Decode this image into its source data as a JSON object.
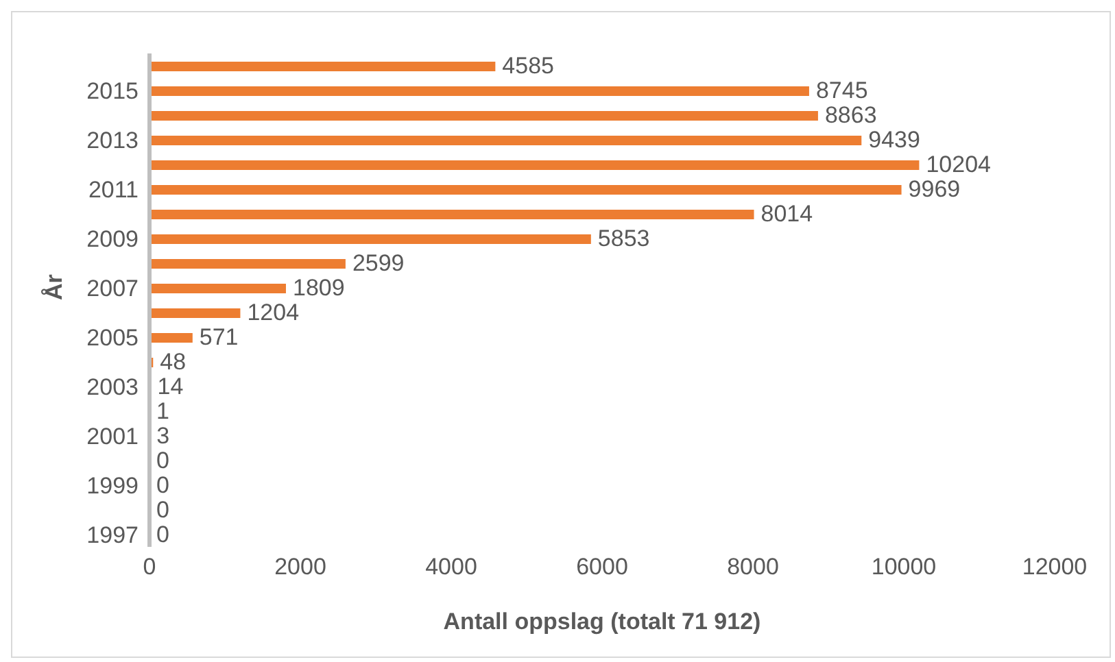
{
  "chart_data": {
    "type": "bar",
    "orientation": "horizontal",
    "xlabel": "Antall oppslag (totalt 71 912)",
    "ylabel": "År",
    "categories": [
      null,
      "2015",
      null,
      "2013",
      null,
      "2011",
      null,
      "2009",
      null,
      "2007",
      null,
      "2005",
      null,
      "2003",
      null,
      "2001",
      null,
      "1999",
      null,
      "1997"
    ],
    "values": [
      4585,
      8745,
      8863,
      9439,
      10204,
      9969,
      8014,
      5853,
      2599,
      1809,
      1204,
      571,
      48,
      14,
      1,
      3,
      0,
      0,
      0,
      0
    ],
    "color": "#ed7d31",
    "xlim": [
      0,
      12000
    ],
    "xticks": [
      0,
      2000,
      4000,
      6000,
      8000,
      10000,
      12000
    ],
    "grid": false,
    "data_labels": true
  }
}
